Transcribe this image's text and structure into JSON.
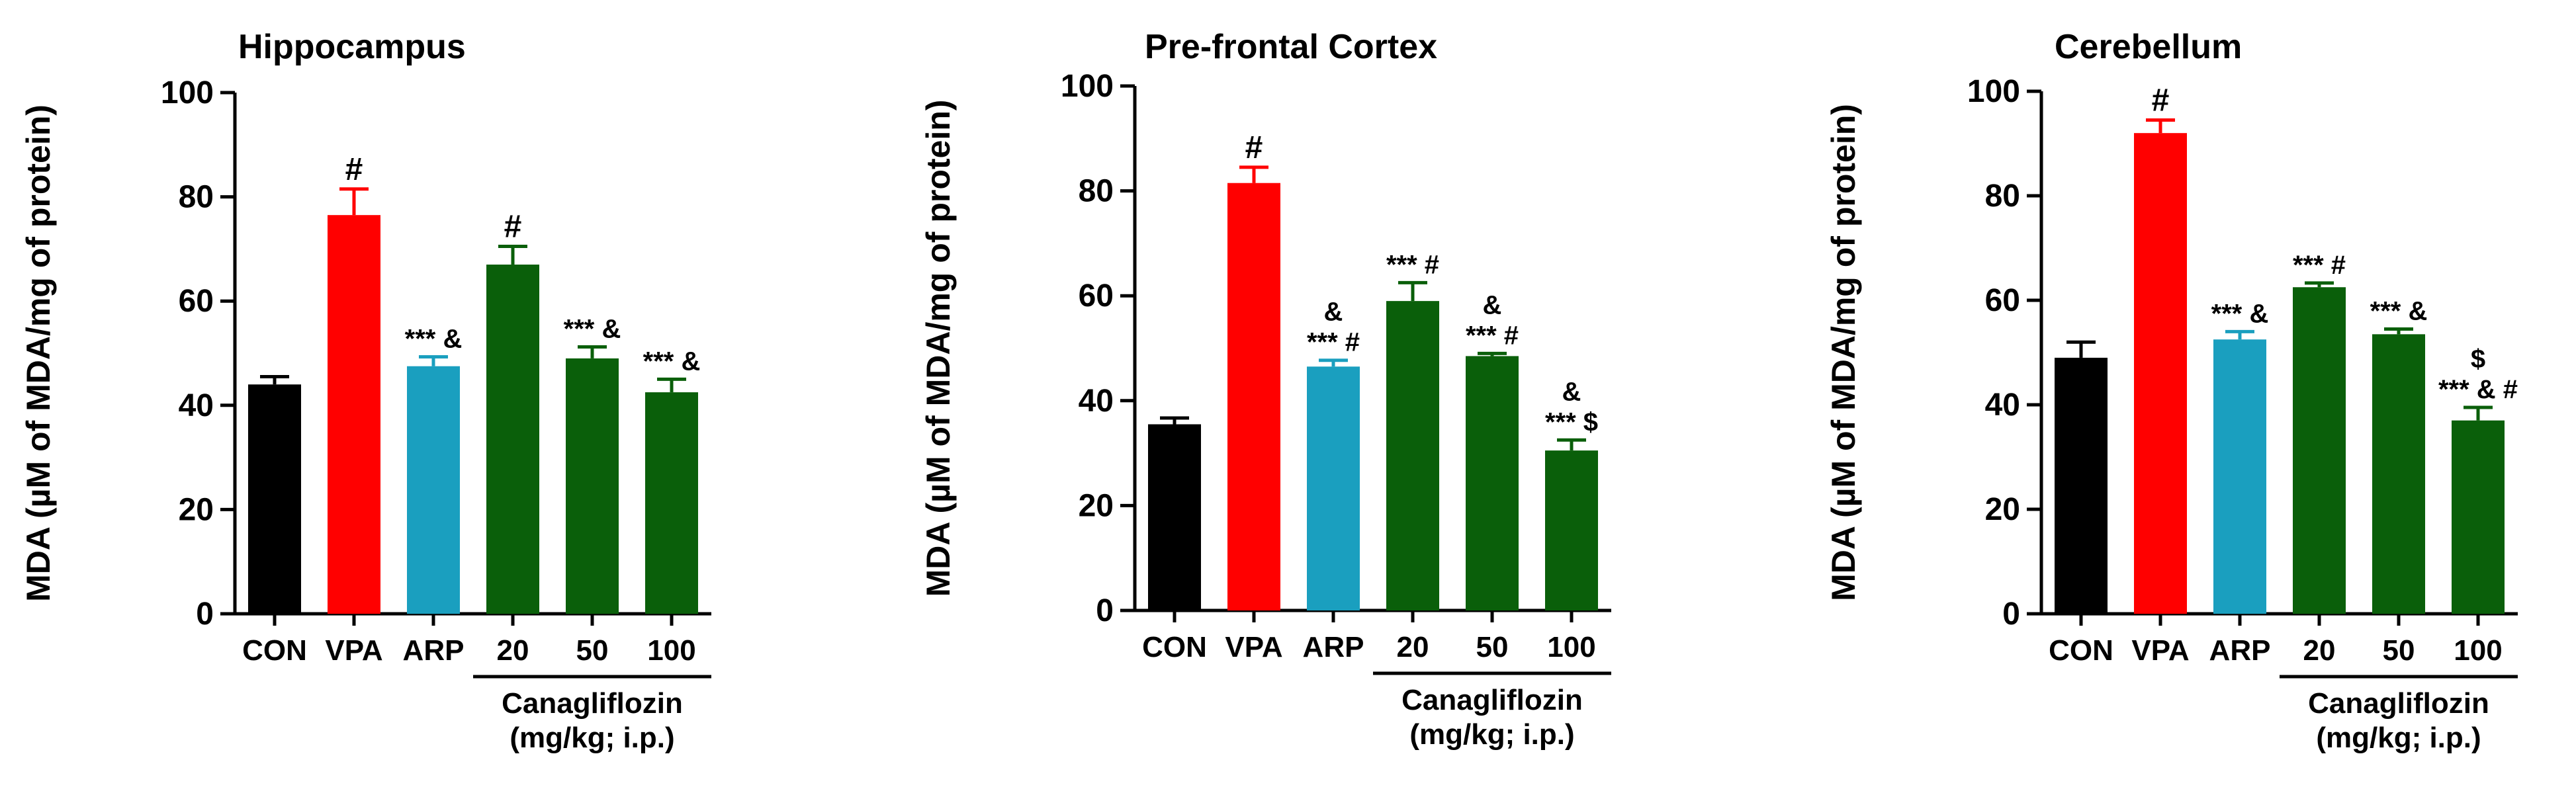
{
  "chart_data": [
    {
      "type": "bar",
      "title": "Hippocampus",
      "ylabel": "MDA (µM of MDA/mg of protein)",
      "ylim": [
        0,
        100
      ],
      "yticks": [
        0,
        20,
        40,
        60,
        80,
        100
      ],
      "categories": [
        "CON",
        "VPA",
        "ARP",
        "20",
        "50",
        "100"
      ],
      "values": [
        44,
        76.5,
        47.5,
        67,
        49,
        42.5
      ],
      "errors": [
        1.5,
        5,
        1.8,
        3.5,
        2.2,
        2.5
      ],
      "colors": [
        "#000000",
        "#ff0000",
        "#1a9fbf",
        "#0a5f0a",
        "#0a5f0a",
        "#0a5f0a"
      ],
      "annotations": [
        {
          "bar": 1,
          "lines": [
            "#"
          ]
        },
        {
          "bar": 2,
          "lines": [
            "*** &"
          ]
        },
        {
          "bar": 3,
          "lines": [
            "#"
          ]
        },
        {
          "bar": 4,
          "lines": [
            "*** &"
          ]
        },
        {
          "bar": 5,
          "lines": [
            "*** &"
          ]
        }
      ],
      "group_label": [
        "Canagliflozin",
        "(mg/kg; i.p.)"
      ]
    },
    {
      "type": "bar",
      "title": "Pre-frontal Cortex",
      "ylabel": "MDA (µM of MDA/mg of protein)",
      "ylim": [
        0,
        100
      ],
      "yticks": [
        0,
        20,
        40,
        60,
        80,
        100
      ],
      "categories": [
        "CON",
        "VPA",
        "ARP",
        "20",
        "50",
        "100"
      ],
      "values": [
        35.5,
        81.5,
        46.5,
        59,
        48.5,
        30.5
      ],
      "errors": [
        1.2,
        3,
        1.2,
        3.5,
        0.5,
        2
      ],
      "colors": [
        "#000000",
        "#ff0000",
        "#1a9fbf",
        "#0a5f0a",
        "#0a5f0a",
        "#0a5f0a"
      ],
      "annotations": [
        {
          "bar": 1,
          "lines": [
            "#"
          ]
        },
        {
          "bar": 2,
          "lines": [
            "&",
            "*** #"
          ]
        },
        {
          "bar": 3,
          "lines": [
            "*** #"
          ]
        },
        {
          "bar": 4,
          "lines": [
            "&",
            "*** #"
          ]
        },
        {
          "bar": 5,
          "lines": [
            "&",
            "*** $"
          ]
        }
      ],
      "group_label": [
        "Canagliflozin",
        "(mg/kg; i.p.)"
      ]
    },
    {
      "type": "bar",
      "title": "Cerebellum",
      "ylabel": "MDA (µM of MDA/mg of protein)",
      "ylim": [
        0,
        100
      ],
      "yticks": [
        0,
        20,
        40,
        60,
        80,
        100
      ],
      "categories": [
        "CON",
        "VPA",
        "ARP",
        "20",
        "50",
        "100"
      ],
      "values": [
        49,
        92,
        52.5,
        62.5,
        53.5,
        37
      ],
      "errors": [
        3,
        2.5,
        1.5,
        0.8,
        1,
        2.5
      ],
      "colors": [
        "#000000",
        "#ff0000",
        "#1a9fbf",
        "#0a5f0a",
        "#0a5f0a",
        "#0a5f0a"
      ],
      "annotations": [
        {
          "bar": 1,
          "lines": [
            "#"
          ]
        },
        {
          "bar": 2,
          "lines": [
            "*** &"
          ]
        },
        {
          "bar": 3,
          "lines": [
            "*** #"
          ]
        },
        {
          "bar": 4,
          "lines": [
            "*** &"
          ]
        },
        {
          "bar": 5,
          "lines": [
            "$",
            "*** & #"
          ]
        }
      ],
      "group_label": [
        "Canagliflozin",
        "(mg/kg; i.p.)"
      ]
    }
  ]
}
